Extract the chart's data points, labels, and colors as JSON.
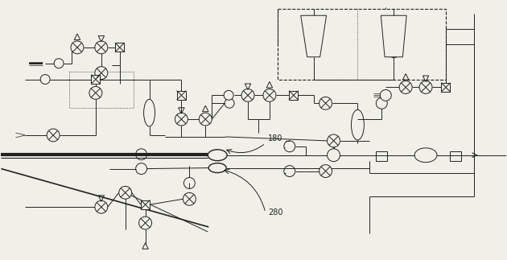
{
  "bg_color": "#f0efe8",
  "line_color": "#222222",
  "fig_width": 6.3,
  "fig_height": 3.23,
  "dpi": 100,
  "label_180": "180",
  "label_280": "280"
}
